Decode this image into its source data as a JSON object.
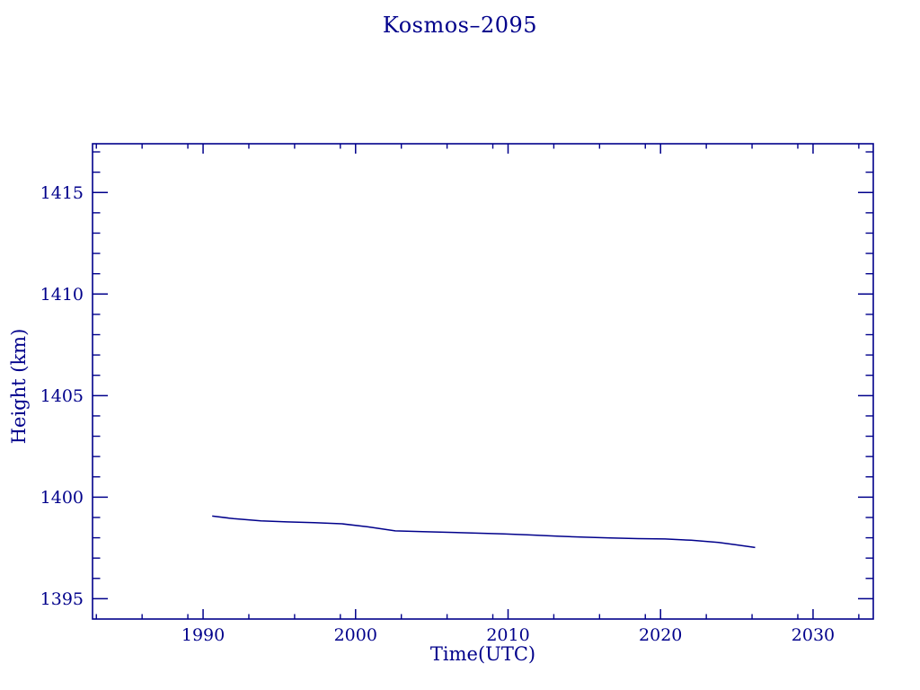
{
  "accent_color": "#00008B",
  "chart_data": {
    "type": "line",
    "title": "Kosmos–2095",
    "xlabel": "Time(UTC)",
    "ylabel": "Height (km)",
    "xlim": [
      1982.75,
      2033.95
    ],
    "ylim": [
      1394.0,
      1417.4
    ],
    "x_major_ticks": [
      1990,
      2000,
      2010,
      2020,
      2030
    ],
    "x_minor_ticks": [
      1983,
      1986,
      1989,
      1993,
      1996,
      1999,
      2003,
      2006,
      2009,
      2013,
      2016,
      2019,
      2023,
      2026,
      2029,
      2033
    ],
    "y_major_ticks": [
      1395,
      1400,
      1405,
      1410,
      1415
    ],
    "y_minor_ticks": [
      1396,
      1397,
      1398,
      1399,
      1401,
      1402,
      1403,
      1404,
      1406,
      1407,
      1408,
      1409,
      1411,
      1412,
      1413,
      1414,
      1416,
      1417
    ],
    "grid": false,
    "legend": null,
    "line_color": "#00008B",
    "axis_color": "#00008B",
    "series": [
      {
        "name": "height",
        "points": [
          [
            1990.6,
            1399.07
          ],
          [
            1992.0,
            1398.94
          ],
          [
            1993.8,
            1398.83
          ],
          [
            1995.5,
            1398.78
          ],
          [
            1997.3,
            1398.74
          ],
          [
            1999.1,
            1398.69
          ],
          [
            2000.8,
            1398.54
          ],
          [
            2002.6,
            1398.34
          ],
          [
            2004.4,
            1398.3
          ],
          [
            2006.1,
            1398.27
          ],
          [
            2007.9,
            1398.23
          ],
          [
            2009.7,
            1398.19
          ],
          [
            2011.4,
            1398.14
          ],
          [
            2013.2,
            1398.08
          ],
          [
            2015.0,
            1398.03
          ],
          [
            2016.7,
            1397.99
          ],
          [
            2018.5,
            1397.96
          ],
          [
            2020.3,
            1397.94
          ],
          [
            2022.0,
            1397.88
          ],
          [
            2023.8,
            1397.77
          ],
          [
            2025.0,
            1397.65
          ],
          [
            2026.2,
            1397.52
          ]
        ]
      }
    ]
  }
}
